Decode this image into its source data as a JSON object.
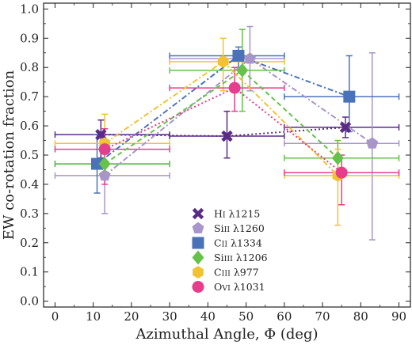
{
  "chart_data": {
    "type": "scatter",
    "title": "",
    "xlabel": "Azimuthal Angle, Φ (deg)",
    "ylabel": "EW co-rotation fraction",
    "xlim": [
      -3,
      93
    ],
    "ylim": [
      -0.02,
      1.02
    ],
    "xticks": [
      "0",
      "10",
      "20",
      "30",
      "40",
      "50",
      "60",
      "70",
      "80",
      "90"
    ],
    "yticks": [
      "0.0",
      "0.1",
      "0.2",
      "0.3",
      "0.4",
      "0.5",
      "0.6",
      "0.7",
      "0.8",
      "0.9",
      "1.0"
    ],
    "grid": false,
    "legend_position": "center",
    "series": [
      {
        "name": "HI λ1215",
        "legend_parts": [
          "H",
          "I",
          " λ1215"
        ],
        "marker": "x",
        "color": "#5a2b86",
        "line_style": "dotted",
        "points": [
          {
            "x": 12,
            "y": 0.57,
            "xerr": [
              0,
              30
            ],
            "yerr": [
              0.49,
              0.62
            ]
          },
          {
            "x": 45,
            "y": 0.565,
            "xerr": [
              30,
              60
            ],
            "yerr": [
              0.49,
              0.65
            ]
          },
          {
            "x": 76,
            "y": 0.595,
            "xerr": [
              60,
              90
            ],
            "yerr": [
              0.56,
              0.63
            ]
          }
        ]
      },
      {
        "name": "SiII λ1260",
        "legend_parts": [
          "Si",
          "II",
          " λ1260"
        ],
        "marker": "pentagon",
        "color": "#a895c9",
        "line_style": "dashdot",
        "points": [
          {
            "x": 13,
            "y": 0.43,
            "xerr": [
              0,
              30
            ],
            "yerr": [
              0.3,
              0.47
            ]
          },
          {
            "x": 51,
            "y": 0.83,
            "xerr": [
              30,
              60
            ],
            "yerr": [
              0.72,
              0.94
            ]
          },
          {
            "x": 83,
            "y": 0.54,
            "xerr": [
              60,
              90
            ],
            "yerr": [
              0.21,
              0.85
            ]
          }
        ]
      },
      {
        "name": "CII λ1334",
        "legend_parts": [
          "C",
          "II",
          " λ1334"
        ],
        "marker": "square",
        "color": "#4a72b8",
        "line_style": "dashdot",
        "points": [
          {
            "x": 11,
            "y": 0.47,
            "xerr": [
              0,
              30
            ],
            "yerr": [
              0.37,
              0.57
            ]
          },
          {
            "x": 48,
            "y": 0.84,
            "xerr": [
              30,
              60
            ],
            "yerr": [
              0.8,
              0.87
            ]
          },
          {
            "x": 77,
            "y": 0.7,
            "xerr": [
              60,
              90
            ],
            "yerr": [
              0.58,
              0.84
            ]
          }
        ]
      },
      {
        "name": "SiIII λ1206",
        "legend_parts": [
          "Si",
          "III",
          " λ1206"
        ],
        "marker": "diamond",
        "color": "#66c24a",
        "line_style": "dashed",
        "points": [
          {
            "x": 13,
            "y": 0.47,
            "xerr": [
              0,
              30
            ],
            "yerr": [
              0.43,
              0.51
            ]
          },
          {
            "x": 49,
            "y": 0.79,
            "xerr": [
              30,
              60
            ],
            "yerr": [
              0.65,
              0.93
            ]
          },
          {
            "x": 74,
            "y": 0.49,
            "xerr": [
              60,
              90
            ],
            "yerr": [
              0.43,
              0.55
            ]
          }
        ]
      },
      {
        "name": "CIII λ977",
        "legend_parts": [
          "C",
          "III",
          " λ977"
        ],
        "marker": "hexagon",
        "color": "#f2c232",
        "line_style": "dashdot",
        "points": [
          {
            "x": 13,
            "y": 0.54,
            "xerr": [
              0,
              30
            ],
            "yerr": [
              0.42,
              0.64
            ]
          },
          {
            "x": 44,
            "y": 0.82,
            "xerr": [
              30,
              60
            ],
            "yerr": [
              0.72,
              0.9
            ]
          },
          {
            "x": 74,
            "y": 0.43,
            "xerr": [
              60,
              90
            ],
            "yerr": [
              0.26,
              0.52
            ]
          }
        ]
      },
      {
        "name": "OVI λ1031",
        "legend_parts": [
          "O",
          "VI",
          " λ1031"
        ],
        "marker": "circle",
        "color": "#e83c8c",
        "line_style": "dotted",
        "points": [
          {
            "x": 13,
            "y": 0.52,
            "xerr": [
              0,
              30
            ],
            "yerr": [
              0.4,
              0.59
            ]
          },
          {
            "x": 47,
            "y": 0.73,
            "xerr": [
              30,
              60
            ],
            "yerr": [
              0.65,
              0.8
            ]
          },
          {
            "x": 75,
            "y": 0.44,
            "xerr": [
              60,
              90
            ],
            "yerr": [
              0.33,
              0.5
            ]
          }
        ]
      }
    ]
  }
}
